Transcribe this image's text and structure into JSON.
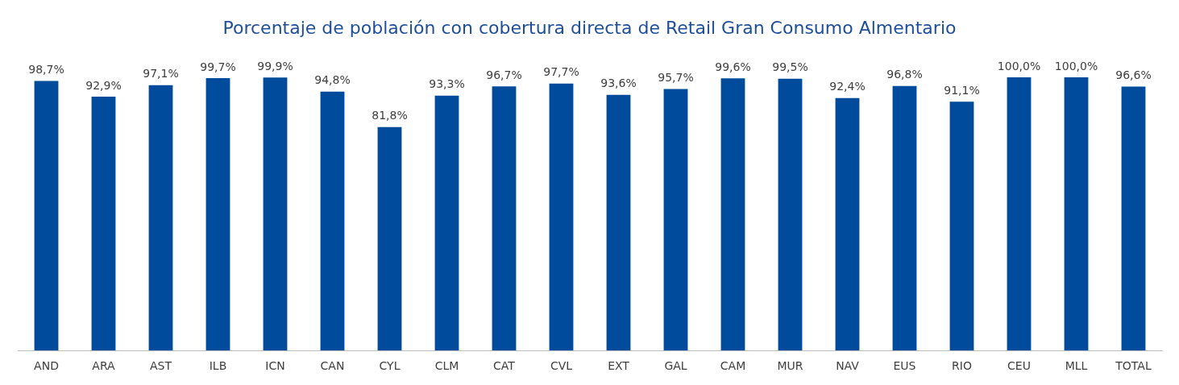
{
  "chart_data": {
    "type": "bar",
    "title": "Porcentaje de población con cobertura directa de Retail Gran Consumo Almentario",
    "categories": [
      "AND",
      "ARA",
      "AST",
      "ILB",
      "ICN",
      "CAN",
      "CYL",
      "CLM",
      "CAT",
      "CVL",
      "EXT",
      "GAL",
      "CAM",
      "MUR",
      "NAV",
      "EUS",
      "RIO",
      "CEU",
      "MLL",
      "TOTAL"
    ],
    "values": [
      98.7,
      92.9,
      97.1,
      99.7,
      99.9,
      94.8,
      81.8,
      93.3,
      96.7,
      97.7,
      93.6,
      95.7,
      99.6,
      99.5,
      92.4,
      96.8,
      91.1,
      100.0,
      100.0,
      96.6
    ],
    "value_labels": [
      "98,7%",
      "92,9%",
      "97,1%",
      "99,7%",
      "99,9%",
      "94,8%",
      "81,8%",
      "93,3%",
      "96,7%",
      "97,7%",
      "93,6%",
      "95,7%",
      "99,6%",
      "99,5%",
      "92,4%",
      "96,8%",
      "91,1%",
      "100,0%",
      "100,0%",
      "96,6%"
    ],
    "color": "#004b9b",
    "grid": false,
    "legend": false
  }
}
